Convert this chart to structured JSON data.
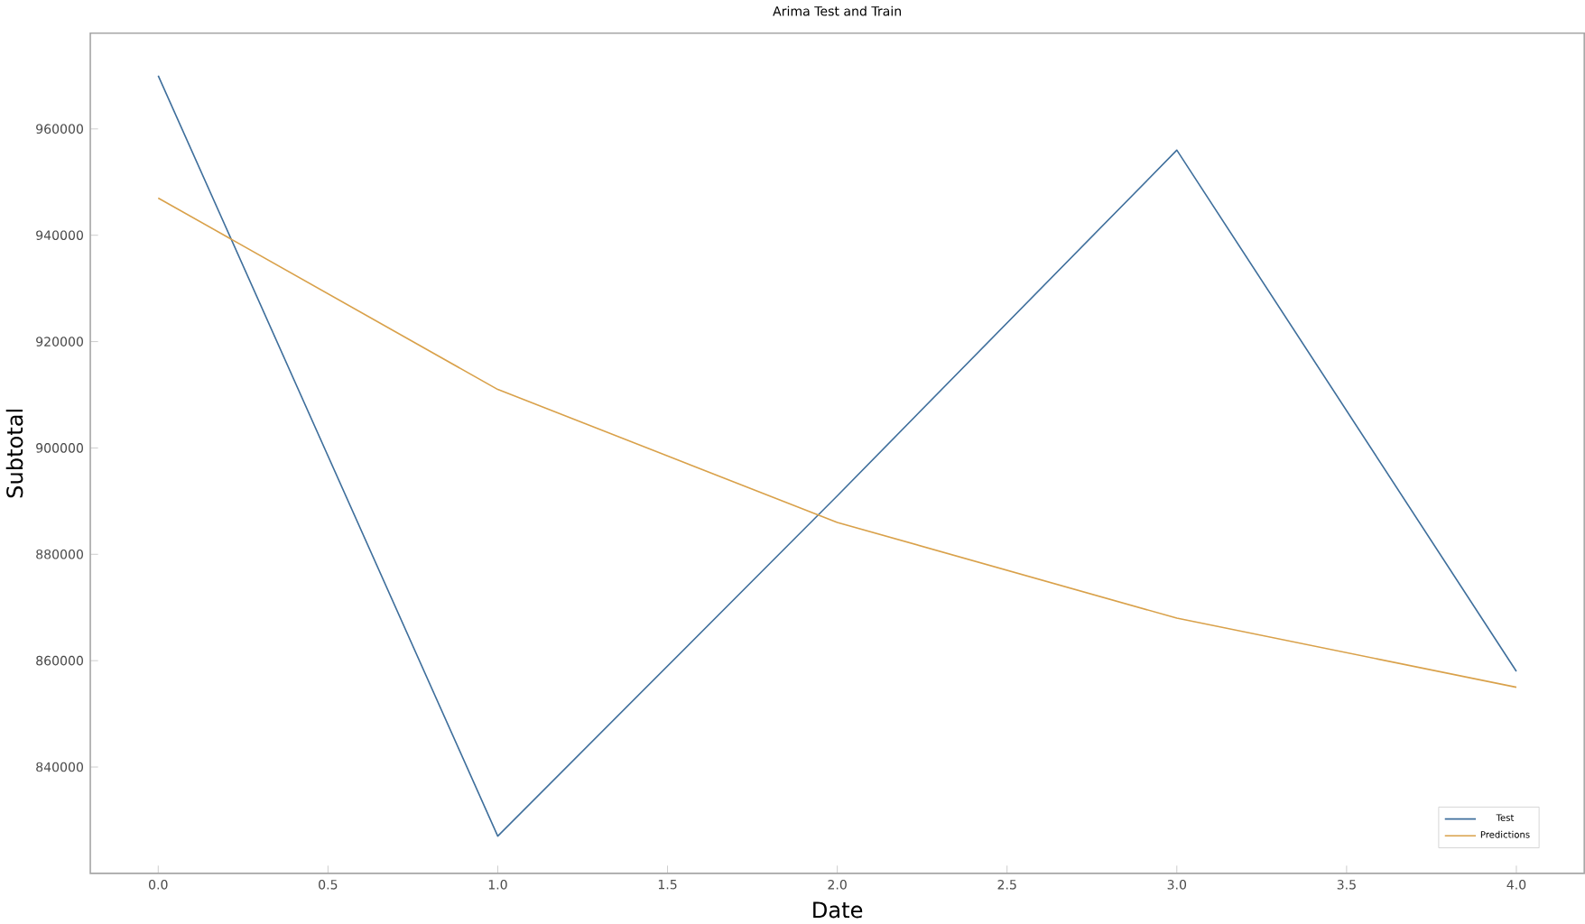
{
  "chart_data": {
    "type": "line",
    "title": "Arima Test and Train",
    "xlabel": "Date",
    "ylabel": "Subtotal",
    "x": [
      0,
      1,
      2,
      3,
      4
    ],
    "series": [
      {
        "name": "Test",
        "color": "#3f6f9c",
        "values": [
          970000,
          827000,
          891000,
          956000,
          858000
        ]
      },
      {
        "name": "Predictions",
        "color": "#d9a14a",
        "values": [
          947000,
          911000,
          886000,
          868000,
          855000
        ]
      }
    ],
    "xlim": [
      -0.2,
      4.2
    ],
    "ylim": [
      820000,
      978000
    ],
    "xticks": [
      {
        "value": 0,
        "label": "0.0"
      },
      {
        "value": 0.5,
        "label": "0.5"
      },
      {
        "value": 1,
        "label": "1.0"
      },
      {
        "value": 1.5,
        "label": "1.5"
      },
      {
        "value": 2,
        "label": "2.0"
      },
      {
        "value": 2.5,
        "label": "2.5"
      },
      {
        "value": 3,
        "label": "3.0"
      },
      {
        "value": 3.5,
        "label": "3.5"
      },
      {
        "value": 4,
        "label": "4.0"
      }
    ],
    "yticks": [
      840000,
      860000,
      880000,
      900000,
      920000,
      940000,
      960000
    ],
    "legend": "bottom right",
    "grid": false
  }
}
